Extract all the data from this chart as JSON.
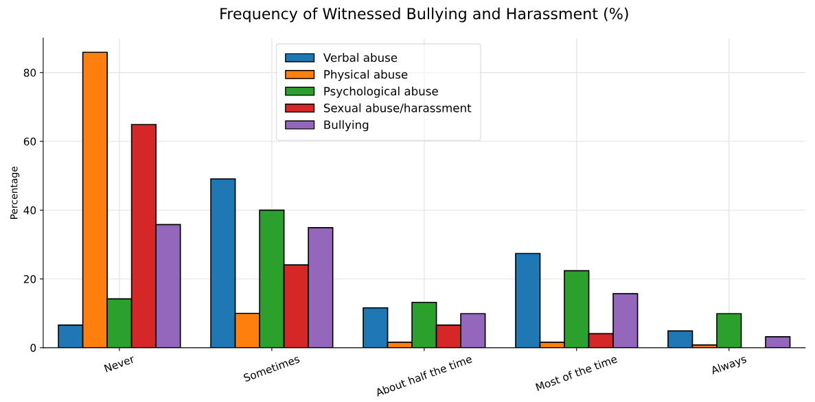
{
  "chart_data": {
    "type": "bar",
    "title": "Frequency of Witnessed Bullying and Harassment (%)",
    "ylabel": "Percentage",
    "categories": [
      "Never",
      "Sometimes",
      "About half the time",
      "Most of the time",
      "Always"
    ],
    "series": [
      {
        "name": "Verbal abuse",
        "color": "#1f77b4",
        "values": [
          6.6,
          49.1,
          11.6,
          27.4,
          4.9
        ]
      },
      {
        "name": "Physical abuse",
        "color": "#ff7f0e",
        "values": [
          85.9,
          10.0,
          1.6,
          1.6,
          0.8
        ]
      },
      {
        "name": "Psychological abuse",
        "color": "#2ca02c",
        "values": [
          14.2,
          40.0,
          13.2,
          22.4,
          9.9
        ]
      },
      {
        "name": "Sexual abuse/harassment",
        "color": "#d62728",
        "values": [
          64.9,
          24.1,
          6.6,
          4.1,
          null
        ]
      },
      {
        "name": "Bullying",
        "color": "#9467bd",
        "values": [
          35.8,
          34.9,
          9.9,
          15.7,
          3.2
        ]
      }
    ],
    "ylim": [
      0,
      90
    ],
    "yticks": [
      0,
      20,
      40,
      60,
      80
    ],
    "grid": true,
    "legend": "top center"
  }
}
